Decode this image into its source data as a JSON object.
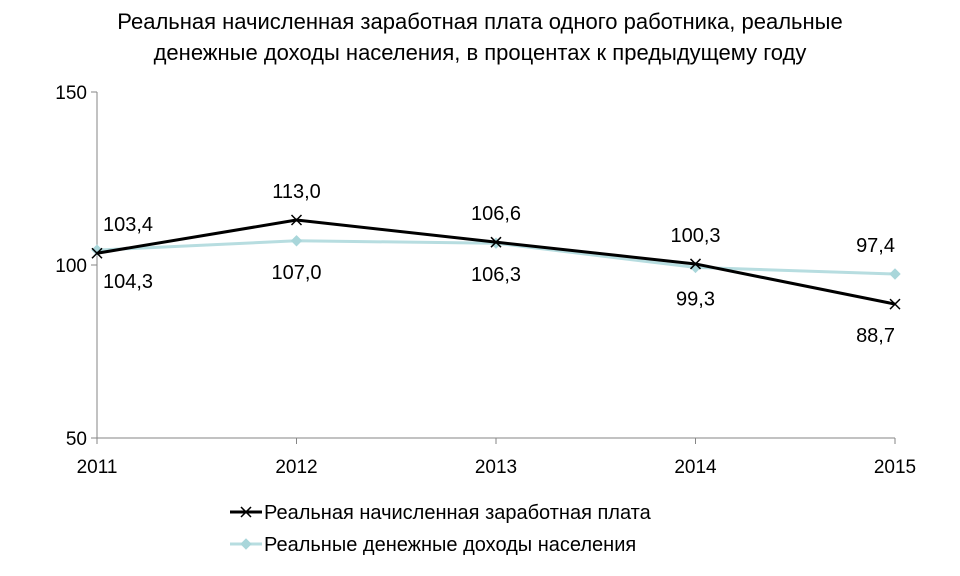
{
  "chart_data": {
    "type": "line",
    "title_lines": [
      "Реальная начисленная заработная плата одного работника, реальные",
      "денежные доходы населения, в процентах к предыдущему году"
    ],
    "x": [
      "2011",
      "2012",
      "2013",
      "2014",
      "2015"
    ],
    "ylim": [
      50,
      150
    ],
    "yticks": [
      "50",
      "100",
      "150"
    ],
    "grid": false,
    "legend_position": "bottom",
    "series": [
      {
        "name": "Реальная начисленная заработная плата",
        "values": [
          103.4,
          113.0,
          106.6,
          100.3,
          88.7
        ],
        "labels": [
          "103,4",
          "113,0",
          "106,6",
          "100,3",
          "88,7"
        ],
        "label_side": [
          "above",
          "above",
          "above",
          "above",
          "below"
        ],
        "color": "#000000",
        "marker": "x"
      },
      {
        "name": "Реальные денежные доходы населения",
        "values": [
          104.3,
          107.0,
          106.3,
          99.3,
          97.4
        ],
        "labels": [
          "104,3",
          "107,0",
          "106,3",
          "99,3",
          "97,4"
        ],
        "label_side": [
          "below",
          "below",
          "below",
          "below",
          "above"
        ],
        "color": "#b7dde0",
        "marker": "diamond"
      }
    ]
  }
}
